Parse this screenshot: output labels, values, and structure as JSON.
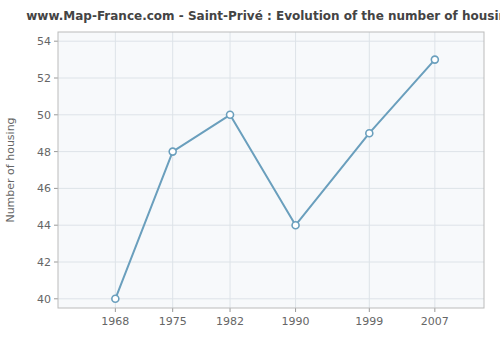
{
  "chart_data": {
    "type": "line",
    "title": "www.Map-France.com - Saint-Privé : Evolution of the number of housing",
    "ylabel": "Number of housing",
    "x": [
      1968,
      1975,
      1982,
      1990,
      1999,
      2007
    ],
    "values": [
      40,
      48,
      50,
      44,
      49,
      53
    ],
    "xlim": [
      1961,
      2013
    ],
    "ylim": [
      39.5,
      54.5
    ],
    "xticks": [
      1968,
      1975,
      1982,
      1990,
      1999,
      2007
    ],
    "yticks": [
      40,
      42,
      44,
      46,
      48,
      50,
      52,
      54
    ],
    "grid": true,
    "color": "#6a9fbd",
    "marker": "circle"
  }
}
